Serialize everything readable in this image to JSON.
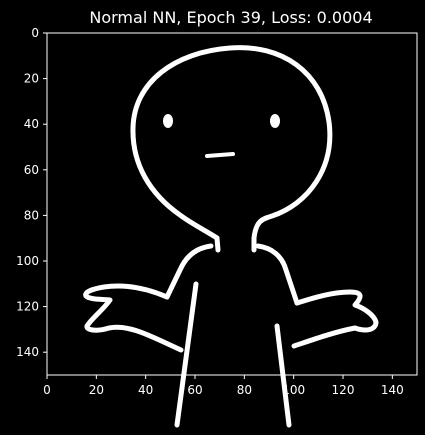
{
  "chart_data": {
    "type": "image",
    "title": "Normal NN, Epoch 39, Loss: 0.0004",
    "xlabel": "",
    "ylabel": "",
    "image_size": [
      150,
      150
    ],
    "xlim": [
      0,
      150
    ],
    "ylim": [
      150,
      0
    ],
    "xticks": [
      0,
      20,
      40,
      60,
      80,
      100,
      120,
      140
    ],
    "yticks": [
      0,
      20,
      40,
      60,
      80,
      100,
      120,
      140
    ],
    "xtick_labels": [
      "0",
      "20",
      "40",
      "60",
      "80",
      "100",
      "120",
      "140"
    ],
    "ytick_labels": [
      "0",
      "20",
      "40",
      "60",
      "80",
      "100",
      "120",
      "140"
    ],
    "colormap": "gray",
    "background_color": "#000000",
    "foreground_color": "#ffffff",
    "image_content": "white line drawing of a shrugging stick figure"
  }
}
